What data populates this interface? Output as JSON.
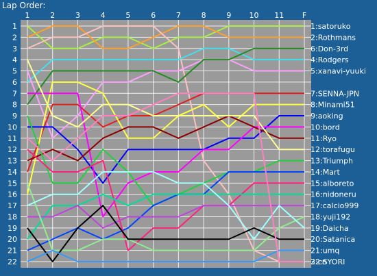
{
  "chart_data": {
    "type": "line",
    "title": "Lap Order:",
    "x": [
      "1",
      "2",
      "3",
      "4",
      "5",
      "6",
      "7",
      "8",
      "9",
      "10",
      "11",
      "F"
    ],
    "yrange": [
      1,
      22
    ],
    "grid": true,
    "background": "#9a9a9a",
    "page_background": "#1c5e96",
    "grid_color": "#ffffff",
    "series": [
      {
        "name": "1:satoruko",
        "color": "#a8f23c",
        "values": [
          1,
          3,
          3,
          2,
          2,
          3,
          2,
          2,
          1,
          1,
          1,
          1
        ]
      },
      {
        "name": "2:Rothmans",
        "color": "#ff9e2a",
        "values": [
          2,
          1,
          1,
          3,
          3,
          2,
          1,
          1,
          2,
          2,
          2,
          2
        ]
      },
      {
        "name": "3:cn",
        "color": "#ffc0c0",
        "values": [
          3,
          2,
          2,
          1,
          1,
          1,
          3,
          13,
          16,
          21,
          22,
          22
        ]
      },
      {
        "name": "4:Rodgers",
        "color": "#40e0f0",
        "values": [
          6,
          4,
          4,
          4,
          4,
          4,
          4,
          3,
          3,
          4,
          4,
          4
        ]
      },
      {
        "name": "5:xanavi-yuuki",
        "color": "#ffa0ff",
        "values": [
          5,
          11,
          9,
          6,
          6,
          5,
          5,
          4,
          4,
          5,
          5,
          5
        ]
      },
      {
        "name": "6:Don-3rd",
        "color": "#228b22",
        "values": [
          8,
          5,
          5,
          5,
          5,
          5,
          6,
          4,
          4,
          3,
          3,
          3
        ]
      },
      {
        "name": "7:SENNA-JPN",
        "color": "#e02020",
        "values": [
          14,
          8,
          8,
          10,
          9,
          9,
          8,
          7,
          7,
          7,
          7,
          7
        ]
      },
      {
        "name": "8:Minami51",
        "color": "#ffff40",
        "values": [
          16,
          6,
          6,
          7,
          11,
          11,
          9,
          8,
          10,
          8,
          8,
          8
        ]
      },
      {
        "name": "9:aoking",
        "color": "#0000ff",
        "values": [
          10,
          10,
          12,
          15,
          12,
          12,
          12,
          12,
          11,
          11,
          9,
          9
        ]
      },
      {
        "name": "10:bord",
        "color": "#ff00ff",
        "values": [
          7,
          7,
          7,
          18,
          15,
          14,
          14,
          12,
          12,
          10,
          10,
          10
        ]
      },
      {
        "name": "11:Ryo",
        "color": "#8b0000",
        "values": [
          13,
          12,
          13,
          11,
          10,
          10,
          11,
          10,
          9,
          10,
          11,
          11
        ]
      },
      {
        "name": "12:torafugu",
        "color": "#ffff90",
        "values": [
          4,
          9,
          10,
          8,
          8,
          9,
          9,
          9,
          9,
          9,
          12,
          12
        ]
      },
      {
        "name": "13:Triumph",
        "color": "#20d040",
        "values": [
          9,
          15,
          15,
          12,
          14,
          17,
          16,
          15,
          14,
          14,
          13,
          13
        ]
      },
      {
        "name": "14:Mart",
        "color": "#0044ff",
        "values": [
          21,
          20,
          19,
          20,
          19,
          17,
          16,
          16,
          14,
          14,
          14,
          14
        ]
      },
      {
        "name": "15:alboreto",
        "color": "#ff2080",
        "values": [
          12,
          14,
          14,
          13,
          21,
          19,
          19,
          17,
          17,
          15,
          15,
          15
        ]
      },
      {
        "name": "16:nidoneru",
        "color": "#00dd99",
        "values": [
          20,
          17,
          17,
          16,
          17,
          16,
          16,
          16,
          16,
          16,
          16,
          16
        ]
      },
      {
        "name": "17:calcio999",
        "color": "#c040e0",
        "values": [
          18,
          18,
          17,
          19,
          18,
          18,
          18,
          17,
          17,
          17,
          17,
          17
        ]
      },
      {
        "name": "18:yuji192",
        "color": "#90ee90",
        "values": [
          15,
          21,
          21,
          20,
          20,
          21,
          21,
          21,
          21,
          21,
          19,
          18
        ]
      },
      {
        "name": "19:Daicha",
        "color": "#a0ffff",
        "values": [
          17,
          16,
          16,
          14,
          14,
          14,
          15,
          15,
          17,
          20,
          17,
          19
        ]
      },
      {
        "name": "20:Satanica",
        "color": "#000000",
        "values": [
          19,
          22,
          19,
          17,
          20,
          20,
          20,
          20,
          20,
          19,
          20,
          20
        ]
      },
      {
        "name": "21:umq",
        "color": "#3399ff",
        "values": [
          22,
          21,
          22,
          22,
          22,
          22,
          22,
          22,
          22,
          22,
          21,
          21
        ]
      },
      {
        "name": "22:SYORI",
        "color": "#ff80c0",
        "values": [
          11,
          13,
          11,
          9,
          9,
          8,
          7,
          7,
          7,
          7,
          22,
          22
        ]
      }
    ]
  }
}
